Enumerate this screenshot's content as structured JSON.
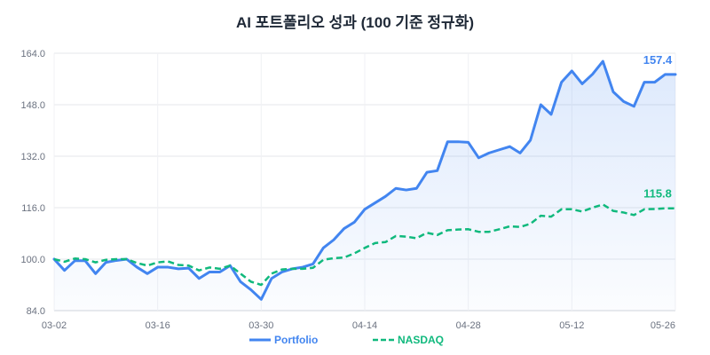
{
  "chart_data": {
    "type": "line",
    "title": "AI 포트폴리오 성과 (100 기준 정규화)",
    "xlabel": "",
    "ylabel": "",
    "ylim": [
      84,
      164
    ],
    "yticks": [
      "84.0",
      "100.0",
      "116.0",
      "132.0",
      "148.0",
      "164.0"
    ],
    "ytick_values": [
      84,
      100,
      116,
      132,
      148,
      164
    ],
    "x_tick_labels": [
      "03-02",
      "03-16",
      "03-30",
      "04-14",
      "04-28",
      "05-12",
      "05-26"
    ],
    "x_tick_indices": [
      0,
      10,
      20,
      30,
      40,
      50,
      60
    ],
    "x_count": 61,
    "grid": true,
    "legend_position": "bottom",
    "series": [
      {
        "name": "Portfolio",
        "color": "#4285f0",
        "style": "solid",
        "fill_area": true,
        "end_label": "157.4",
        "values": [
          100.0,
          96.5,
          99.5,
          99.5,
          95.5,
          99.0,
          99.6,
          100.0,
          97.5,
          95.5,
          97.5,
          97.5,
          97.0,
          97.2,
          94.0,
          96.0,
          96.0,
          98.0,
          93.0,
          90.5,
          87.5,
          94.0,
          96.0,
          97.0,
          97.5,
          98.5,
          103.5,
          106.0,
          109.5,
          111.5,
          115.5,
          117.5,
          119.5,
          122.0,
          121.5,
          122.0,
          127.0,
          127.5,
          136.5,
          136.5,
          136.3,
          131.5,
          133.0,
          134.0,
          135.0,
          133.0,
          137.0,
          148.0,
          145.0,
          155.0,
          158.5,
          154.5,
          157.5,
          161.5,
          152.0,
          149.0,
          147.5,
          155.0,
          155.0,
          157.4,
          157.4
        ]
      },
      {
        "name": "NASDAQ",
        "color": "#10b97d",
        "style": "dashed",
        "fill_area": false,
        "end_label": "115.8",
        "values": [
          100.0,
          99.2,
          100.2,
          100.0,
          99.0,
          99.8,
          100.0,
          100.0,
          98.8,
          98.0,
          99.0,
          99.3,
          98.2,
          98.0,
          96.5,
          97.4,
          97.0,
          98.0,
          95.5,
          93.0,
          92.0,
          95.5,
          96.8,
          97.0,
          97.0,
          97.3,
          99.8,
          100.3,
          100.5,
          101.8,
          103.5,
          105.0,
          105.3,
          107.2,
          107.0,
          106.5,
          108.2,
          107.5,
          109.0,
          109.2,
          109.3,
          108.5,
          108.5,
          109.3,
          110.2,
          110.0,
          111.0,
          113.5,
          113.2,
          115.5,
          115.5,
          114.8,
          116.0,
          117.0,
          115.0,
          114.5,
          113.7,
          115.5,
          115.6,
          115.8,
          115.8
        ]
      }
    ]
  }
}
